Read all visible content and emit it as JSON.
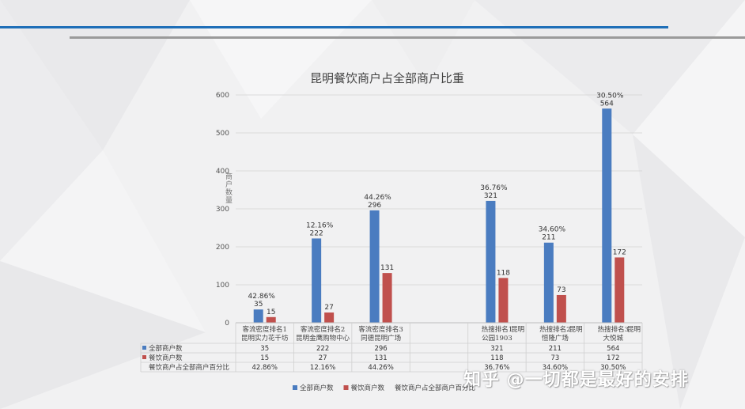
{
  "chart_data": {
    "type": "bar",
    "title": "昆明餐饮商户占全部商户比重",
    "ylabel": "商户数量",
    "ylim": [
      0,
      600
    ],
    "yticks": [
      0,
      100,
      200,
      300,
      400,
      500,
      600
    ],
    "categories": [
      {
        "line1": "客流密度排名1",
        "line2": "昆明实力花千坊",
        "suffix": ""
      },
      {
        "line1": "客流密度排名2",
        "line2": "昆明金鹰购物中心",
        "suffix": ""
      },
      {
        "line1": "客流密度排名3",
        "line2": "同德昆明广场",
        "suffix": ""
      },
      {
        "line1": "",
        "line2": "",
        "suffix": ""
      },
      {
        "line1": "热搜排名1",
        "line2": "公园1903",
        "suffix": "昆明"
      },
      {
        "line1": "热搜排名2",
        "line2": "恒隆广场",
        "suffix": "昆明"
      },
      {
        "line1": "热搜排名3",
        "line2": "大悦城",
        "suffix": "昆明"
      }
    ],
    "series": [
      {
        "name": "全部商户数",
        "color": "#4a7cc0",
        "values": [
          35,
          222,
          296,
          null,
          321,
          211,
          564
        ],
        "labels": [
          "35",
          "222",
          "296",
          "",
          "321",
          "211",
          "564"
        ]
      },
      {
        "name": "餐饮商户数",
        "color": "#c0504d",
        "values": [
          15,
          27,
          131,
          null,
          118,
          73,
          172
        ],
        "labels": [
          "15",
          "27",
          "131",
          "",
          "118",
          "73",
          "172"
        ]
      },
      {
        "name": "餐饮商户占全部商户百分比",
        "color": "",
        "values": [
          42.86,
          12.16,
          44.26,
          null,
          36.76,
          34.6,
          30.5
        ],
        "labels": [
          "42.86%",
          "12.16%",
          "44.26%",
          "",
          "36.76%",
          "34.60%",
          "30.50%"
        ]
      }
    ],
    "legend_position": "bottom",
    "grid": true
  },
  "watermark": "知乎 @一切都是最好的安排"
}
